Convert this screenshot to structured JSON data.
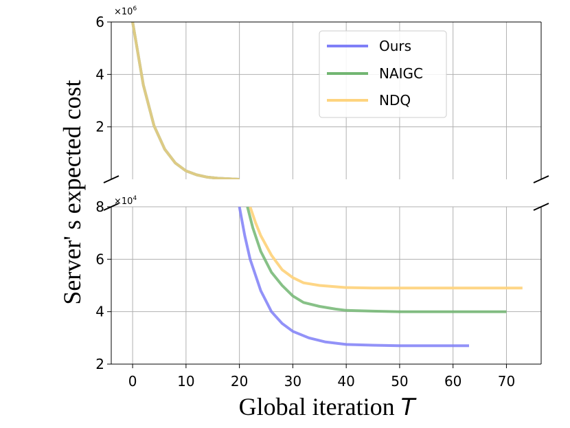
{
  "chart_data": {
    "type": "line",
    "xlabel": "Global iteration",
    "xlabel_var": "T",
    "ylabel": "Server' s expected cost",
    "x_ticks": [
      "0",
      "10",
      "20",
      "30",
      "40",
      "50",
      "60",
      "70"
    ],
    "xlim": [
      -4,
      76.5
    ],
    "grid": true,
    "legend_position": "top-right",
    "colors": {
      "Ours": "#7f7ff7",
      "NAIGC": "#72b672",
      "NDQ": "#fed47f"
    },
    "top_panel": {
      "multiplier": "×10",
      "multiplier_exp": "6",
      "ylim": [
        0,
        6
      ],
      "y_ticks": [
        "2",
        "4",
        "6"
      ],
      "y_tick_values": [
        2,
        4,
        6
      ],
      "shared_curve": {
        "x": [
          0,
          2,
          4,
          6,
          8,
          10,
          12,
          14,
          16,
          18,
          20
        ],
        "y": [
          6.0,
          3.6,
          2.05,
          1.15,
          0.62,
          0.32,
          0.17,
          0.08,
          0.04,
          0.02,
          0.0
        ]
      }
    },
    "bottom_panel": {
      "multiplier": "×10",
      "multiplier_exp": "4",
      "ylim": [
        2,
        8
      ],
      "y_ticks": [
        "2",
        "4",
        "6",
        "8"
      ],
      "y_tick_values": [
        2,
        4,
        6,
        8
      ]
    },
    "series": [
      {
        "name": "Ours",
        "x": [
          20,
          21,
          22,
          24,
          26,
          28,
          30,
          33,
          36,
          40,
          45,
          50,
          55,
          60,
          63
        ],
        "y": [
          8.0,
          6.9,
          6.0,
          4.8,
          4.0,
          3.55,
          3.25,
          3.0,
          2.85,
          2.75,
          2.72,
          2.7,
          2.7,
          2.7,
          2.7
        ]
      },
      {
        "name": "NAIGC",
        "x": [
          21.5,
          22.5,
          24,
          26,
          28,
          30,
          32,
          35,
          38,
          40,
          45,
          50,
          55,
          60,
          65,
          70
        ],
        "y": [
          8.0,
          7.2,
          6.3,
          5.5,
          5.0,
          4.6,
          4.35,
          4.2,
          4.1,
          4.05,
          4.02,
          4.0,
          4.0,
          4.0,
          4.0,
          4.0
        ]
      },
      {
        "name": "NDQ",
        "x": [
          22,
          23,
          24,
          26,
          28,
          30,
          32,
          35,
          38,
          40,
          45,
          50,
          55,
          60,
          65,
          70,
          73
        ],
        "y": [
          8.0,
          7.4,
          6.9,
          6.15,
          5.6,
          5.3,
          5.1,
          5.0,
          4.95,
          4.92,
          4.9,
          4.9,
          4.9,
          4.9,
          4.9,
          4.9,
          4.9
        ]
      }
    ]
  }
}
